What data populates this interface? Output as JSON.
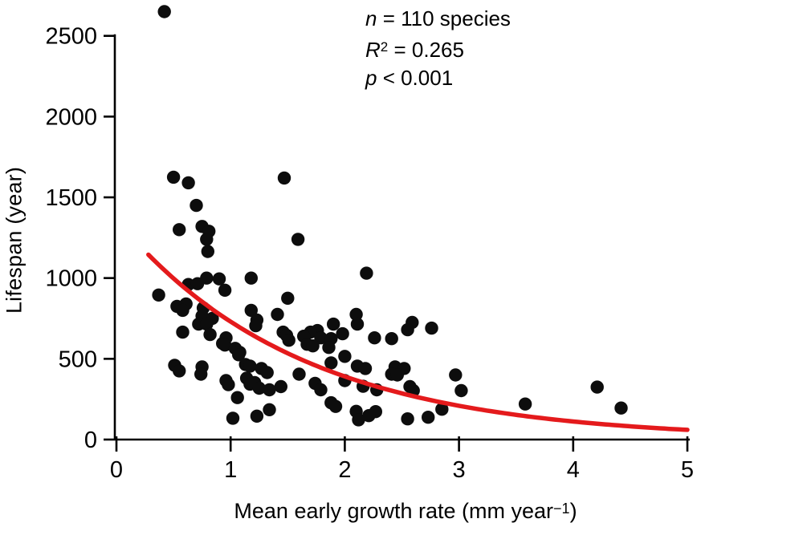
{
  "figure_title": "",
  "annotation": {
    "line1": {
      "var": "n",
      "rest": " = 110 species"
    },
    "line2": {
      "var": "R",
      "sup": "2",
      "rest": " = 0.265"
    },
    "line3": {
      "var": "p",
      "rest": " < 0.001"
    }
  },
  "labels": {
    "xlabel_main": "Mean early growth rate (mm year",
    "xlabel_sup": "−1",
    "xlabel_close": ")",
    "ylabel": "Lifespan (year)"
  },
  "colors": {
    "point": "#0d0d0d",
    "fit_line": "#e41a1c",
    "axis": "#000000"
  },
  "chart_data": {
    "type": "scatter",
    "title": "",
    "xlabel": "Mean early growth rate (mm year−1)",
    "ylabel": "Lifespan (year)",
    "xlim": [
      0,
      5
    ],
    "ylim": [
      0,
      2500
    ],
    "x_ticks": [
      0,
      1,
      2,
      3,
      4,
      5
    ],
    "y_ticks": [
      0,
      500,
      1000,
      1500,
      2000,
      2500
    ],
    "grid": false,
    "legend": "none",
    "stats": {
      "n": 110,
      "r_squared": 0.265,
      "p": "< 0.001"
    },
    "fit_curve": {
      "model": "exponential",
      "formula": "y = a*exp(b*x)",
      "a": 1364,
      "b": -0.625,
      "x_range": [
        0.28,
        5.0
      ]
    },
    "points": [
      [
        0.42,
        2650
      ],
      [
        0.5,
        1625
      ],
      [
        1.47,
        1620
      ],
      [
        0.63,
        1590
      ],
      [
        0.7,
        1450
      ],
      [
        0.75,
        1320
      ],
      [
        0.55,
        1300
      ],
      [
        0.81,
        1290
      ],
      [
        0.79,
        1240
      ],
      [
        1.59,
        1240
      ],
      [
        0.8,
        1165
      ],
      [
        2.19,
        1030
      ],
      [
        0.79,
        1000
      ],
      [
        0.9,
        995
      ],
      [
        1.18,
        1000
      ],
      [
        0.63,
        960
      ],
      [
        0.71,
        965
      ],
      [
        0.95,
        925
      ],
      [
        0.37,
        895
      ],
      [
        1.5,
        875
      ],
      [
        0.61,
        840
      ],
      [
        0.53,
        825
      ],
      [
        0.76,
        815
      ],
      [
        0.58,
        800
      ],
      [
        1.18,
        800
      ],
      [
        1.41,
        775
      ],
      [
        2.1,
        775
      ],
      [
        0.75,
        765
      ],
      [
        0.84,
        750
      ],
      [
        1.23,
        740
      ],
      [
        2.59,
        725
      ],
      [
        0.72,
        715
      ],
      [
        0.79,
        715
      ],
      [
        1.9,
        715
      ],
      [
        2.11,
        715
      ],
      [
        1.22,
        705
      ],
      [
        2.76,
        690
      ],
      [
        2.55,
        680
      ],
      [
        1.76,
        675
      ],
      [
        0.58,
        665
      ],
      [
        1.46,
        665
      ],
      [
        1.7,
        665
      ],
      [
        1.98,
        655
      ],
      [
        1.49,
        645
      ],
      [
        1.64,
        640
      ],
      [
        0.82,
        650
      ],
      [
        0.96,
        630
      ],
      [
        1.79,
        630
      ],
      [
        2.26,
        630
      ],
      [
        2.41,
        625
      ],
      [
        1.88,
        625
      ],
      [
        1.51,
        615
      ],
      [
        0.93,
        595
      ],
      [
        1.67,
        590
      ],
      [
        0.95,
        585
      ],
      [
        1.72,
        580
      ],
      [
        1.86,
        570
      ],
      [
        1.04,
        565
      ],
      [
        1.08,
        540
      ],
      [
        1.07,
        525
      ],
      [
        2.0,
        515
      ],
      [
        1.88,
        475
      ],
      [
        0.51,
        460
      ],
      [
        1.13,
        465
      ],
      [
        1.17,
        455
      ],
      [
        2.11,
        455
      ],
      [
        0.75,
        450
      ],
      [
        2.44,
        450
      ],
      [
        2.52,
        440
      ],
      [
        1.27,
        440
      ],
      [
        2.18,
        440
      ],
      [
        0.55,
        425
      ],
      [
        1.32,
        415
      ],
      [
        2.41,
        405
      ],
      [
        0.74,
        405
      ],
      [
        1.6,
        405
      ],
      [
        2.46,
        400
      ],
      [
        2.97,
        400
      ],
      [
        1.14,
        380
      ],
      [
        0.96,
        365
      ],
      [
        2.0,
        365
      ],
      [
        1.21,
        353
      ],
      [
        1.74,
        348
      ],
      [
        0.98,
        340
      ],
      [
        1.17,
        343
      ],
      [
        1.44,
        328
      ],
      [
        2.16,
        330
      ],
      [
        2.28,
        308
      ],
      [
        1.25,
        318
      ],
      [
        4.21,
        325
      ],
      [
        2.57,
        328
      ],
      [
        1.34,
        308
      ],
      [
        2.6,
        303
      ],
      [
        3.02,
        303
      ],
      [
        1.79,
        308
      ],
      [
        1.06,
        260
      ],
      [
        1.88,
        228
      ],
      [
        3.58,
        220
      ],
      [
        1.92,
        205
      ],
      [
        4.42,
        195
      ],
      [
        2.85,
        188
      ],
      [
        1.34,
        185
      ],
      [
        2.27,
        173
      ],
      [
        2.1,
        175
      ],
      [
        2.21,
        148
      ],
      [
        1.23,
        145
      ],
      [
        2.73,
        138
      ],
      [
        2.55,
        128
      ],
      [
        1.02,
        132
      ],
      [
        2.12,
        122
      ]
    ]
  }
}
